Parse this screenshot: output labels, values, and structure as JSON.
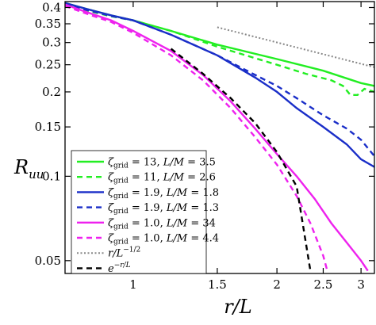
{
  "chart_data": {
    "type": "line",
    "xlabel": "r/L",
    "ylabel": "R_uu",
    "xscale": "log",
    "yscale": "log",
    "xlim": [
      0.72,
      3.2
    ],
    "ylim": [
      0.045,
      0.42
    ],
    "grid": false,
    "legend_position": "bottom-left",
    "xticks": [
      {
        "value": 1,
        "label": "1"
      },
      {
        "value": 1.5,
        "label": "1.5"
      },
      {
        "value": 2,
        "label": "2"
      },
      {
        "value": 2.5,
        "label": "2.5"
      },
      {
        "value": 3,
        "label": "3"
      }
    ],
    "yticks": [
      {
        "value": 0.05,
        "label": "0.05"
      },
      {
        "value": 0.1,
        "label": "0.1"
      },
      {
        "value": 0.15,
        "label": "0.15"
      },
      {
        "value": 0.2,
        "label": "0.2"
      },
      {
        "value": 0.25,
        "label": "0.25"
      },
      {
        "value": 0.3,
        "label": "0.3"
      },
      {
        "value": 0.35,
        "label": "0.35"
      },
      {
        "value": 0.4,
        "label": "0.4"
      }
    ],
    "series": [
      {
        "name": "ζ_grid = 13, L/M = 3.5",
        "color": "#22ee22",
        "dash": "solid",
        "x": [
          0.72,
          0.8,
          0.9,
          1.0,
          1.2,
          1.5,
          2.0,
          2.5,
          3.0,
          3.2
        ],
        "y": [
          0.415,
          0.395,
          0.375,
          0.36,
          0.33,
          0.295,
          0.262,
          0.238,
          0.215,
          0.21
        ]
      },
      {
        "name": "ζ_grid = 11, L/M = 2.6",
        "color": "#22ee22",
        "dash": "dashed",
        "x": [
          0.72,
          0.8,
          0.9,
          1.0,
          1.2,
          1.5,
          2.0,
          2.3,
          2.6,
          2.75,
          2.85,
          2.95,
          3.05,
          3.2
        ],
        "y": [
          0.41,
          0.39,
          0.372,
          0.36,
          0.33,
          0.29,
          0.25,
          0.232,
          0.22,
          0.21,
          0.195,
          0.195,
          0.205,
          0.2
        ]
      },
      {
        "name": "ζ_grid = 1.9, L/M = 1.8",
        "color": "#1a2ec8",
        "dash": "solid",
        "x": [
          0.72,
          0.8,
          0.9,
          1.0,
          1.2,
          1.5,
          1.8,
          2.0,
          2.2,
          2.5,
          2.8,
          3.0,
          3.2
        ],
        "y": [
          0.415,
          0.395,
          0.375,
          0.36,
          0.32,
          0.27,
          0.225,
          0.2,
          0.175,
          0.15,
          0.13,
          0.115,
          0.108
        ]
      },
      {
        "name": "ζ_grid = 1.9, L/M = 1.3",
        "color": "#1a2ec8",
        "dash": "dashed",
        "x": [
          0.72,
          0.8,
          0.9,
          1.0,
          1.2,
          1.5,
          1.8,
          2.0,
          2.2,
          2.5,
          2.8,
          3.0,
          3.2
        ],
        "y": [
          0.41,
          0.392,
          0.373,
          0.36,
          0.32,
          0.27,
          0.23,
          0.21,
          0.19,
          0.165,
          0.148,
          0.135,
          0.118
        ]
      },
      {
        "name": "ζ_grid = 1.0, L/M = 34",
        "color": "#ee22ee",
        "dash": "solid",
        "x": [
          0.72,
          0.8,
          0.9,
          1.0,
          1.2,
          1.4,
          1.6,
          1.8,
          2.0,
          2.2,
          2.4,
          2.6,
          2.8,
          3.0,
          3.1
        ],
        "y": [
          0.41,
          0.385,
          0.36,
          0.33,
          0.28,
          0.23,
          0.185,
          0.148,
          0.12,
          0.1,
          0.083,
          0.068,
          0.058,
          0.05,
          0.046
        ]
      },
      {
        "name": "ζ_grid = 1.0, L/M = 4.4",
        "color": "#ee22ee",
        "dash": "dashed",
        "x": [
          0.72,
          0.8,
          0.9,
          1.0,
          1.2,
          1.4,
          1.6,
          1.8,
          2.0,
          2.2,
          2.35,
          2.5,
          2.55
        ],
        "y": [
          0.405,
          0.38,
          0.355,
          0.325,
          0.27,
          0.22,
          0.175,
          0.138,
          0.11,
          0.085,
          0.068,
          0.052,
          0.046
        ]
      },
      {
        "name": "r/L^{-1/2}",
        "color": "#888888",
        "dash": "dotted",
        "x": [
          1.5,
          3.2
        ],
        "y": [
          0.34,
          0.245
        ]
      },
      {
        "name": "e^{-r/L}",
        "color": "#000000",
        "dash": "dashed",
        "x": [
          1.2,
          1.4,
          1.6,
          1.8,
          2.0,
          2.2,
          2.35
        ],
        "y": [
          0.285,
          0.232,
          0.19,
          0.155,
          0.122,
          0.092,
          0.046
        ]
      }
    ]
  },
  "legend": {
    "entries": [
      {
        "zeta": "13",
        "lm": "3.5",
        "color": "#22ee22",
        "dash": "solid"
      },
      {
        "zeta": "11",
        "lm": "2.6",
        "color": "#22ee22",
        "dash": "dashed"
      },
      {
        "zeta": "1.9",
        "lm": "1.8",
        "color": "#1a2ec8",
        "dash": "solid"
      },
      {
        "zeta": "1.9",
        "lm": "1.3",
        "color": "#1a2ec8",
        "dash": "dashed"
      },
      {
        "zeta": "1.0",
        "lm": "34",
        "color": "#ee22ee",
        "dash": "solid"
      },
      {
        "zeta": "1.0",
        "lm": "4.4",
        "color": "#ee22ee",
        "dash": "dashed"
      }
    ],
    "zeta_symbol": "ζ",
    "grid_subscript": "grid",
    "equals": " = ",
    "comma": ", ",
    "lm_label": "L/M",
    "power_base": "r/L",
    "power_exp": "−1/2",
    "exp_base": "e",
    "exp_exp": "−r/L",
    "power_color": "#888888",
    "exp_color": "#000000"
  }
}
